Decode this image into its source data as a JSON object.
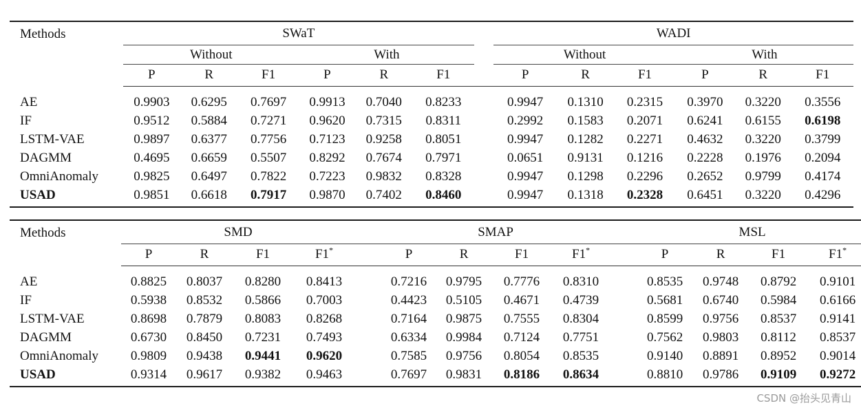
{
  "table1": {
    "method_label": "Methods",
    "datasets": [
      "SWaT",
      "WADI"
    ],
    "groups": [
      "Without",
      "With"
    ],
    "metrics": [
      "P",
      "R",
      "F1"
    ],
    "rows": [
      {
        "method": "AE",
        "values": [
          "0.9903",
          "0.6295",
          "0.7697",
          "0.9913",
          "0.7040",
          "0.8233",
          "0.9947",
          "0.1310",
          "0.2315",
          "0.3970",
          "0.3220",
          "0.3556"
        ]
      },
      {
        "method": "IF",
        "values": [
          "0.9512",
          "0.5884",
          "0.7271",
          "0.9620",
          "0.7315",
          "0.8311",
          "0.2992",
          "0.1583",
          "0.2071",
          "0.6241",
          "0.6155",
          "0.6198"
        ]
      },
      {
        "method": "LSTM-VAE",
        "values": [
          "0.9897",
          "0.6377",
          "0.7756",
          "0.7123",
          "0.9258",
          "0.8051",
          "0.9947",
          "0.1282",
          "0.2271",
          "0.4632",
          "0.3220",
          "0.3799"
        ]
      },
      {
        "method": "DAGMM",
        "values": [
          "0.4695",
          "0.6659",
          "0.5507",
          "0.8292",
          "0.7674",
          "0.7971",
          "0.0651",
          "0.9131",
          "0.1216",
          "0.2228",
          "0.1976",
          "0.2094"
        ]
      },
      {
        "method": "OmniAnomaly",
        "values": [
          "0.9825",
          "0.6497",
          "0.7822",
          "0.7223",
          "0.9832",
          "0.8328",
          "0.9947",
          "0.1298",
          "0.2296",
          "0.2652",
          "0.9799",
          "0.4174"
        ]
      },
      {
        "method": "USAD",
        "values": [
          "0.9851",
          "0.6618",
          "0.7917",
          "0.9870",
          "0.7402",
          "0.8460",
          "0.9947",
          "0.1318",
          "0.2328",
          "0.6451",
          "0.3220",
          "0.4296"
        ]
      }
    ]
  },
  "table2": {
    "method_label": "Methods",
    "datasets": [
      "SMD",
      "SMAP",
      "MSL"
    ],
    "metrics": [
      "P",
      "R",
      "F1",
      "F1"
    ],
    "star": "*",
    "rows": [
      {
        "method": "AE",
        "values": [
          "0.8825",
          "0.8037",
          "0.8280",
          "0.8413",
          "0.7216",
          "0.9795",
          "0.7776",
          "0.8310",
          "0.8535",
          "0.9748",
          "0.8792",
          "0.9101"
        ]
      },
      {
        "method": "IF",
        "values": [
          "0.5938",
          "0.8532",
          "0.5866",
          "0.7003",
          "0.4423",
          "0.5105",
          "0.4671",
          "0.4739",
          "0.5681",
          "0.6740",
          "0.5984",
          "0.6166"
        ]
      },
      {
        "method": "LSTM-VAE",
        "values": [
          "0.8698",
          "0.7879",
          "0.8083",
          "0.8268",
          "0.7164",
          "0.9875",
          "0.7555",
          "0.8304",
          "0.8599",
          "0.9756",
          "0.8537",
          "0.9141"
        ]
      },
      {
        "method": "DAGMM",
        "values": [
          "0.6730",
          "0.8450",
          "0.7231",
          "0.7493",
          "0.6334",
          "0.9984",
          "0.7124",
          "0.7751",
          "0.7562",
          "0.9803",
          "0.8112",
          "0.8537"
        ]
      },
      {
        "method": "OmniAnomaly",
        "values": [
          "0.9809",
          "0.9438",
          "0.9441",
          "0.9620",
          "0.7585",
          "0.9756",
          "0.8054",
          "0.8535",
          "0.9140",
          "0.8891",
          "0.8952",
          "0.9014"
        ]
      },
      {
        "method": "USAD",
        "values": [
          "0.9314",
          "0.9617",
          "0.9382",
          "0.9463",
          "0.7697",
          "0.9831",
          "0.8186",
          "0.8634",
          "0.8810",
          "0.9786",
          "0.9109",
          "0.9272"
        ]
      }
    ]
  },
  "watermark": "CSDN @抬头见青山"
}
